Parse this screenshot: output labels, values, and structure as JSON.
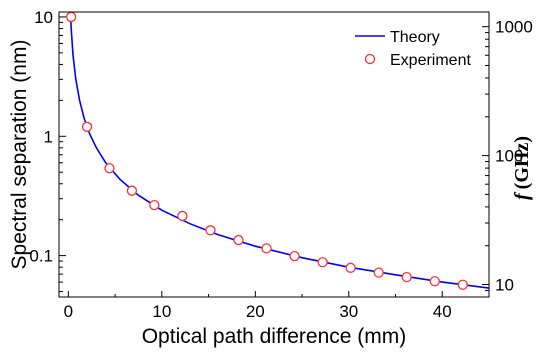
{
  "chart_data": {
    "type": "line",
    "xlabel": "Optical path difference (mm)",
    "ylabel": "Spectral separation (nm)",
    "y2label_italic": "f",
    "y2label_rest": "(GHz)",
    "xlim": [
      -1,
      45
    ],
    "ylim": [
      0.045,
      11
    ],
    "yscale": "log",
    "y2lim": [
      8,
      1300
    ],
    "y2scale": "log",
    "x_ticks": [
      "0",
      "10",
      "20",
      "30",
      "40"
    ],
    "y_ticks": [
      "10",
      "1",
      "0.1"
    ],
    "y2_ticks": [
      "1000",
      "100",
      "10"
    ],
    "grid": false,
    "legend_position": "top-right",
    "series": [
      {
        "name": "Theory",
        "style": "line",
        "color": "#0000ff",
        "x": [
          0.2,
          0.3,
          0.5,
          0.8,
          1.2,
          1.7,
          2.3,
          3.0,
          4.0,
          5.5,
          7.5,
          10,
          13,
          16,
          20,
          25,
          30,
          35,
          40,
          45
        ],
        "y": [
          12.0,
          8.0,
          4.8,
          3.0,
          2.0,
          1.41,
          1.04,
          0.8,
          0.6,
          0.437,
          0.32,
          0.24,
          0.185,
          0.15,
          0.12,
          0.096,
          0.08,
          0.069,
          0.06,
          0.0534
        ]
      },
      {
        "name": "Experiment",
        "style": "marker",
        "marker": "open-circle",
        "color": "#ff3030",
        "x": [
          0.3,
          2.0,
          4.4,
          6.8,
          9.2,
          12.2,
          15.2,
          18.2,
          21.2,
          24.2,
          27.2,
          30.2,
          33.2,
          36.2,
          39.2,
          42.2
        ],
        "y": [
          10.0,
          1.2,
          0.54,
          0.35,
          0.265,
          0.215,
          0.163,
          0.135,
          0.115,
          0.099,
          0.088,
          0.079,
          0.072,
          0.066,
          0.061,
          0.057
        ]
      }
    ]
  }
}
